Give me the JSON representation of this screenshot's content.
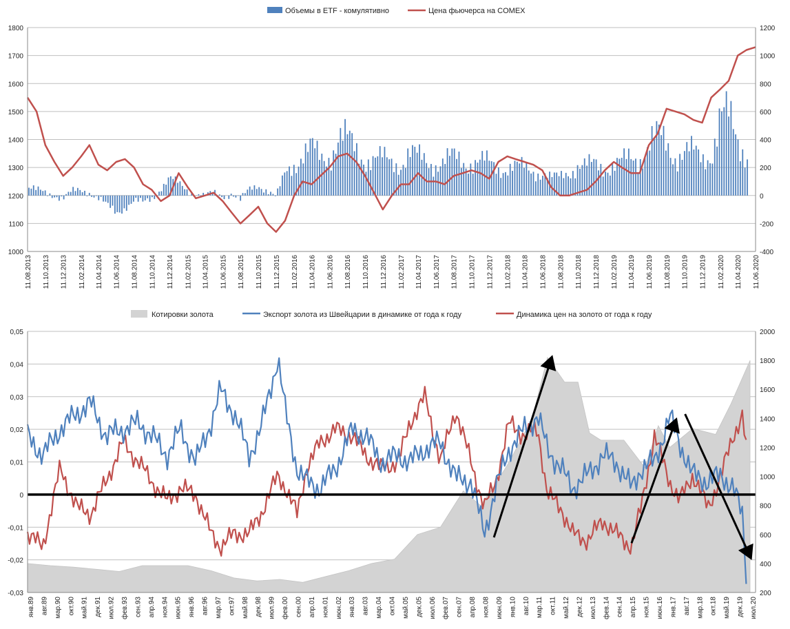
{
  "chart_data": [
    {
      "type": "bar+line",
      "legend_position": "top-center",
      "grid": true,
      "legend": [
        {
          "name": "Объемы в ETF - комулятивно",
          "color": "#4f81bd",
          "kind": "bar"
        },
        {
          "name": "Цена фьючерса на COMEX",
          "color": "#c0504d",
          "kind": "line"
        }
      ],
      "y_left": {
        "min": 1000,
        "max": 1800,
        "step": 100,
        "ticks": [
          "1000",
          "1100",
          "1200",
          "1300",
          "1400",
          "1500",
          "1600",
          "1700",
          "1800"
        ]
      },
      "y_right": {
        "min": -400,
        "max": 1200,
        "step": 200,
        "ticks": [
          "-400",
          "-200",
          "0",
          "200",
          "400",
          "600",
          "800",
          "1000",
          "1200"
        ]
      },
      "x_start": "11.08.2013",
      "x_end": "11.06.2020",
      "x_labels": [
        "11.08.2013",
        "11.10.2013",
        "11.12.2013",
        "11.02.2014",
        "11.04.2014",
        "11.06.2014",
        "11.08.2014",
        "11.10.2014",
        "11.12.2014",
        "11.02.2015",
        "11.04.2015",
        "11.06.2015",
        "11.08.2015",
        "11.10.2015",
        "11.12.2015",
        "11.02.2016",
        "11.04.2016",
        "11.06.2016",
        "11.08.2016",
        "11.10.2016",
        "11.12.2016",
        "11.02.2017",
        "11.04.2017",
        "11.06.2017",
        "11.08.2017",
        "11.10.2017",
        "11.12.2017",
        "11.02.2018",
        "11.04.2018",
        "11.06.2018",
        "11.08.2018",
        "11.10.2018",
        "11.12.2018",
        "11.02.2019",
        "11.04.2019",
        "11.06.2019",
        "11.08.2019",
        "11.10.2019",
        "11.12.2019",
        "11.02.2020",
        "11.04.2020",
        "11.06.2020"
      ],
      "price_line": {
        "axis": "left",
        "x": [
          "11.08.2013",
          "11.09.2013",
          "11.10.2013",
          "11.11.2013",
          "11.12.2013",
          "11.01.2014",
          "11.02.2014",
          "11.03.2014",
          "11.04.2014",
          "11.05.2014",
          "11.06.2014",
          "11.07.2014",
          "11.08.2014",
          "11.09.2014",
          "11.10.2014",
          "11.11.2014",
          "11.12.2014",
          "11.01.2015",
          "11.02.2015",
          "11.03.2015",
          "11.04.2015",
          "11.05.2015",
          "11.06.2015",
          "11.07.2015",
          "11.08.2015",
          "11.09.2015",
          "11.10.2015",
          "11.11.2015",
          "11.12.2015",
          "11.01.2016",
          "11.02.2016",
          "11.03.2016",
          "11.04.2016",
          "11.05.2016",
          "11.06.2016",
          "11.07.2016",
          "11.08.2016",
          "11.09.2016",
          "11.10.2016",
          "11.11.2016",
          "11.12.2016",
          "11.01.2017",
          "11.02.2017",
          "11.03.2017",
          "11.04.2017",
          "11.05.2017",
          "11.06.2017",
          "11.07.2017",
          "11.08.2017",
          "11.09.2017",
          "11.10.2017",
          "11.11.2017",
          "11.12.2017",
          "11.01.2018",
          "11.02.2018",
          "11.03.2018",
          "11.04.2018",
          "11.05.2018",
          "11.06.2018",
          "11.07.2018",
          "11.08.2018",
          "11.09.2018",
          "11.10.2018",
          "11.11.2018",
          "11.12.2018",
          "11.01.2019",
          "11.02.2019",
          "11.03.2019",
          "11.04.2019",
          "11.05.2019",
          "11.06.2019",
          "11.07.2019",
          "11.08.2019",
          "11.09.2019",
          "11.10.2019",
          "11.11.2019",
          "11.12.2019",
          "11.01.2020",
          "11.02.2020",
          "11.03.2020",
          "11.04.2020",
          "11.05.2020",
          "11.06.2020"
        ],
        "values": [
          1550,
          1500,
          1380,
          1320,
          1270,
          1300,
          1340,
          1380,
          1310,
          1290,
          1320,
          1330,
          1300,
          1240,
          1220,
          1180,
          1200,
          1280,
          1230,
          1190,
          1200,
          1210,
          1180,
          1140,
          1100,
          1130,
          1160,
          1100,
          1070,
          1110,
          1200,
          1250,
          1240,
          1270,
          1300,
          1340,
          1350,
          1320,
          1270,
          1210,
          1150,
          1200,
          1240,
          1240,
          1280,
          1250,
          1250,
          1240,
          1270,
          1280,
          1290,
          1280,
          1260,
          1320,
          1340,
          1330,
          1320,
          1310,
          1290,
          1230,
          1200,
          1200,
          1210,
          1220,
          1250,
          1290,
          1320,
          1300,
          1280,
          1280,
          1380,
          1420,
          1510,
          1500,
          1490,
          1470,
          1460,
          1550,
          1580,
          1610,
          1700,
          1720,
          1730
        ]
      },
      "etf_bars": {
        "axis": "right",
        "x": [
          "11.08.2013",
          "11.09.2013",
          "11.10.2013",
          "11.11.2013",
          "11.12.2013",
          "11.01.2014",
          "11.02.2014",
          "11.03.2014",
          "11.04.2014",
          "11.05.2014",
          "11.06.2014",
          "11.07.2014",
          "11.08.2014",
          "11.09.2014",
          "11.10.2014",
          "11.11.2014",
          "11.12.2014",
          "11.01.2015",
          "11.02.2015",
          "11.03.2015",
          "11.04.2015",
          "11.05.2015",
          "11.06.2015",
          "11.07.2015",
          "11.08.2015",
          "11.09.2015",
          "11.10.2015",
          "11.11.2015",
          "11.12.2015",
          "11.01.2016",
          "11.02.2016",
          "11.03.2016",
          "11.04.2016",
          "11.05.2016",
          "11.06.2016",
          "11.07.2016",
          "11.08.2016",
          "11.09.2016",
          "11.10.2016",
          "11.11.2016",
          "11.12.2016",
          "11.01.2017",
          "11.02.2017",
          "11.03.2017",
          "11.04.2017",
          "11.05.2017",
          "11.06.2017",
          "11.07.2017",
          "11.08.2017",
          "11.09.2017",
          "11.10.2017",
          "11.11.2017",
          "11.12.2017",
          "11.01.2018",
          "11.02.2018",
          "11.03.2018",
          "11.04.2018",
          "11.05.2018",
          "11.06.2018",
          "11.07.2018",
          "11.08.2018",
          "11.09.2018",
          "11.10.2018",
          "11.11.2018",
          "11.12.2018",
          "11.01.2019",
          "11.02.2019",
          "11.03.2019",
          "11.04.2019",
          "11.05.2019",
          "11.06.2019",
          "11.07.2019",
          "11.08.2019",
          "11.09.2019",
          "11.10.2019",
          "11.11.2019",
          "11.12.2019",
          "11.01.2020",
          "11.02.2020",
          "11.03.2020",
          "11.04.2020",
          "11.05.2020",
          "11.06.2020"
        ],
        "values": [
          60,
          30,
          20,
          10,
          -20,
          20,
          40,
          30,
          -20,
          -80,
          -120,
          -80,
          -40,
          -60,
          -20,
          60,
          120,
          80,
          40,
          20,
          -10,
          10,
          0,
          20,
          -40,
          40,
          80,
          40,
          -20,
          160,
          240,
          300,
          320,
          260,
          300,
          420,
          380,
          320,
          280,
          260,
          250,
          240,
          240,
          300,
          260,
          250,
          240,
          240,
          260,
          250,
          250,
          240,
          220,
          200,
          210,
          200,
          190,
          180,
          170,
          120,
          130,
          180,
          220,
          200,
          220,
          210,
          220,
          230,
          260,
          280,
          380,
          400,
          360,
          300,
          320,
          290,
          260,
          320,
          560,
          520,
          400,
          320,
          300
        ]
      }
    },
    {
      "type": "area+line",
      "legend_position": "top-center",
      "grid": true,
      "legend": [
        {
          "name": "Котировки золота",
          "color": "#d3d3d3",
          "kind": "area"
        },
        {
          "name": "Экспорт золота из Швейцарии  в динамике от года к году",
          "color": "#4f81bd",
          "kind": "line"
        },
        {
          "name": "Динамика цен на золото от года к году",
          "color": "#c0504d",
          "kind": "line"
        }
      ],
      "y_left": {
        "min": -0.03,
        "max": 0.05,
        "step": 0.01,
        "ticks": [
          "-0,03",
          "-0,02",
          "-0,01",
          "0",
          "0,01",
          "0,02",
          "0,03",
          "0,04",
          "0,05"
        ]
      },
      "y_right": {
        "min": 200,
        "max": 2000,
        "step": 200,
        "ticks": [
          "200",
          "400",
          "600",
          "800",
          "1000",
          "1200",
          "1400",
          "1600",
          "1800",
          "2000"
        ]
      },
      "x_start": "1989-01",
      "x_end": "2020-07",
      "x_labels": [
        "янв.89",
        "авг.89",
        "мар.90",
        "окт.90",
        "май.91",
        "дек.91",
        "июл.92",
        "фев.93",
        "сен.93",
        "апр.94",
        "ноя.94",
        "июн.95",
        "янв.96",
        "авг.96",
        "мар.97",
        "окт.97",
        "май.98",
        "дек.98",
        "июл.99",
        "фев.00",
        "сен.00",
        "апр.01",
        "ноя.01",
        "июн.02",
        "янв.03",
        "авг.03",
        "мар.04",
        "окт.04",
        "май.05",
        "дек.05",
        "июл.06",
        "фев.07",
        "сен.07",
        "апр.08",
        "ноя.08",
        "июн.09",
        "янв.10",
        "авг.10",
        "мар.11",
        "окт.11",
        "май.12",
        "дек.12",
        "июл.13",
        "фев.14",
        "сен.14",
        "апр.15",
        "ноя.15",
        "июн.16",
        "янв.17",
        "авг.17",
        "мар.18",
        "окт.18",
        "май.19",
        "дек.19",
        "июл.20"
      ],
      "gold_quotes": {
        "axis": "right",
        "x": [
          "1989-01",
          "1990-01",
          "1991-01",
          "1992-01",
          "1993-01",
          "1994-01",
          "1995-01",
          "1996-01",
          "1997-01",
          "1998-01",
          "1999-01",
          "2000-01",
          "2001-01",
          "2002-01",
          "2003-01",
          "2004-01",
          "2005-01",
          "2006-01",
          "2007-01",
          "2008-01",
          "2008-10",
          "2009-06",
          "2010-01",
          "2011-01",
          "2011-09",
          "2012-06",
          "2013-01",
          "2013-07",
          "2014-01",
          "2015-01",
          "2015-12",
          "2016-07",
          "2017-01",
          "2018-01",
          "2019-01",
          "2019-09",
          "2020-07"
        ],
        "values": [
          400,
          385,
          375,
          360,
          345,
          385,
          385,
          385,
          350,
          300,
          280,
          290,
          270,
          310,
          350,
          400,
          430,
          600,
          650,
          900,
          800,
          950,
          1100,
          1400,
          1820,
          1650,
          1650,
          1300,
          1250,
          1250,
          1060,
          1350,
          1200,
          1330,
          1290,
          1500,
          1800
        ]
      },
      "export_yoy": {
        "axis": "left",
        "x": [
          "1989-01",
          "1989-09",
          "1990-06",
          "1991-03",
          "1991-10",
          "1992-06",
          "1993-03",
          "1993-11",
          "1994-06",
          "1995-02",
          "1995-09",
          "1996-05",
          "1997-01",
          "1997-06",
          "1998-01",
          "1998-09",
          "1999-03",
          "1999-12",
          "2000-04",
          "2000-10",
          "2001-03",
          "2001-10",
          "2002-06",
          "2003-03",
          "2003-10",
          "2004-06",
          "2005-03",
          "2005-09",
          "2006-05",
          "2007-01",
          "2007-09",
          "2008-05",
          "2008-12",
          "2009-06",
          "2010-01",
          "2010-09",
          "2011-04",
          "2011-09",
          "2012-04",
          "2012-10",
          "2013-06",
          "2014-02",
          "2014-09",
          "2015-05",
          "2015-10",
          "2016-05",
          "2017-01",
          "2017-06",
          "2018-01",
          "2018-09",
          "2019-04",
          "2019-10",
          "2020-03",
          "2020-05"
        ],
        "values": [
          0.018,
          0.012,
          0.02,
          0.025,
          0.028,
          0.018,
          0.02,
          0.022,
          0.018,
          0.012,
          0.02,
          0.01,
          0.022,
          0.032,
          0.025,
          0.012,
          0.02,
          0.042,
          0.025,
          0.008,
          0.004,
          0.002,
          0.008,
          0.02,
          0.018,
          0.01,
          0.012,
          0.01,
          0.014,
          0.016,
          0.005,
          0.004,
          -0.012,
          0.002,
          0.014,
          0.02,
          0.024,
          0.014,
          0.008,
          0.002,
          0.006,
          0.012,
          0.01,
          0.002,
          0.008,
          0.01,
          0.024,
          0.016,
          0.006,
          0.004,
          0.006,
          0.002,
          -0.006,
          -0.024
        ]
      },
      "price_yoy": {
        "axis": "left",
        "x": [
          "1989-01",
          "1989-09",
          "1990-06",
          "1991-03",
          "1991-10",
          "1992-06",
          "1993-03",
          "1993-11",
          "1994-06",
          "1995-02",
          "1995-09",
          "1996-05",
          "1997-01",
          "1997-06",
          "1998-01",
          "1998-09",
          "1999-03",
          "1999-12",
          "2000-04",
          "2000-10",
          "2001-03",
          "2001-10",
          "2002-06",
          "2003-03",
          "2003-10",
          "2004-06",
          "2005-03",
          "2005-09",
          "2006-05",
          "2007-01",
          "2007-09",
          "2008-05",
          "2008-12",
          "2009-06",
          "2010-01",
          "2010-09",
          "2011-04",
          "2011-09",
          "2012-04",
          "2012-10",
          "2013-06",
          "2014-02",
          "2014-09",
          "2015-05",
          "2015-10",
          "2016-05",
          "2017-01",
          "2017-06",
          "2018-01",
          "2018-09",
          "2019-04",
          "2019-10",
          "2020-03",
          "2020-05"
        ],
        "values": [
          -0.012,
          -0.016,
          0.008,
          -0.004,
          -0.006,
          0.004,
          0.016,
          0.01,
          0.004,
          -0.002,
          0.002,
          0.0,
          -0.012,
          -0.016,
          -0.012,
          -0.012,
          -0.006,
          0.006,
          0.002,
          -0.006,
          0.008,
          0.016,
          0.02,
          0.018,
          0.012,
          0.008,
          0.01,
          0.022,
          0.03,
          0.01,
          0.026,
          0.01,
          -0.004,
          0.004,
          0.022,
          0.018,
          0.02,
          0.0,
          -0.004,
          -0.012,
          -0.014,
          -0.008,
          -0.012,
          -0.016,
          -0.004,
          0.018,
          0.004,
          -0.002,
          0.006,
          -0.004,
          0.006,
          0.018,
          0.024,
          0.014
        ]
      },
      "zero_line": 0,
      "annotations": [
        {
          "type": "arrow",
          "from": {
            "x": "2009-05",
            "y_right": 580
          },
          "to": {
            "x": "2011-11",
            "y_right": 1810
          }
        },
        {
          "type": "arrow",
          "from": {
            "x": "2015-05",
            "y_right": 540
          },
          "to": {
            "x": "2017-04",
            "y_right": 1380
          }
        },
        {
          "type": "arrow",
          "from": {
            "x": "2017-09",
            "y_right": 1430
          },
          "to": {
            "x": "2020-07",
            "y_right": 450
          }
        }
      ]
    }
  ]
}
